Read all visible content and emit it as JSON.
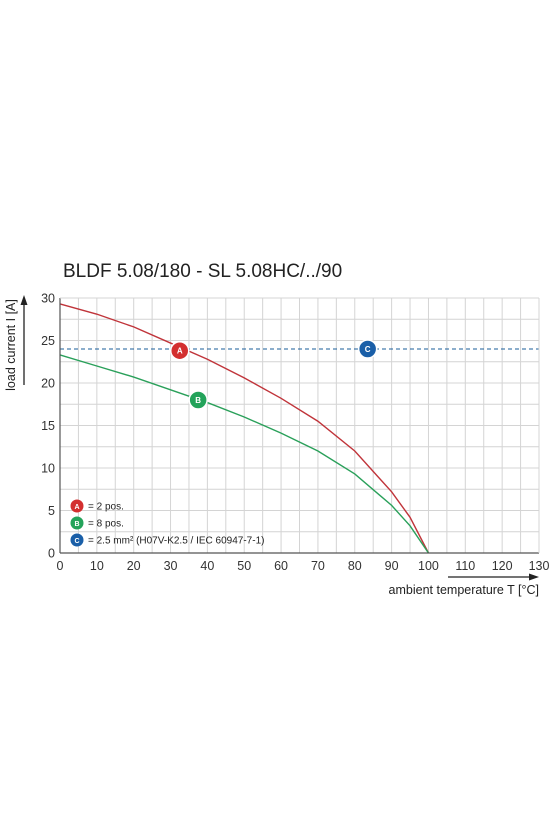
{
  "chart_data": {
    "type": "line",
    "title": "BLDF 5.08/180 - SL 5.08HC/../90",
    "xlabel": "ambient temperature T [°C]",
    "ylabel": "load current I [A]",
    "xlim": [
      0,
      130
    ],
    "ylim": [
      0,
      30
    ],
    "xticks": [
      0,
      10,
      20,
      30,
      40,
      50,
      60,
      70,
      80,
      90,
      100,
      110,
      120,
      130
    ],
    "yticks": [
      0,
      5,
      10,
      15,
      20,
      25,
      30
    ],
    "grid": true,
    "series": [
      {
        "id": "A",
        "color": "#c0343a",
        "points": [
          [
            0,
            29.3
          ],
          [
            10,
            28.1
          ],
          [
            20,
            26.6
          ],
          [
            30,
            24.7
          ],
          [
            40,
            22.8
          ],
          [
            50,
            20.6
          ],
          [
            60,
            18.2
          ],
          [
            70,
            15.5
          ],
          [
            80,
            12.0
          ],
          [
            90,
            7.2
          ],
          [
            95,
            4.2
          ],
          [
            100,
            0
          ]
        ]
      },
      {
        "id": "B",
        "color": "#2aa05a",
        "points": [
          [
            0,
            23.3
          ],
          [
            10,
            22.0
          ],
          [
            20,
            20.7
          ],
          [
            30,
            19.2
          ],
          [
            40,
            17.7
          ],
          [
            50,
            16.0
          ],
          [
            60,
            14.1
          ],
          [
            70,
            12.0
          ],
          [
            80,
            9.3
          ],
          [
            90,
            5.6
          ],
          [
            95,
            3.2
          ],
          [
            100,
            0
          ]
        ]
      },
      {
        "id": "C",
        "color": "#1a5d9a",
        "dashed": true,
        "points": [
          [
            0,
            24
          ],
          [
            130,
            24
          ]
        ]
      }
    ],
    "markers": [
      {
        "letter": "A",
        "x": 32.5,
        "y": 23.8,
        "color": "#d32f2f"
      },
      {
        "letter": "B",
        "x": 37.5,
        "y": 18.0,
        "color": "#23a35a"
      },
      {
        "letter": "C",
        "x": 83.5,
        "y": 24.0,
        "color": "#1a5fa8"
      }
    ],
    "legend": {
      "position": "bottom-left",
      "items": [
        {
          "letter": "A",
          "color": "#d32f2f",
          "text": "= 2 pos."
        },
        {
          "letter": "B",
          "color": "#23a35a",
          "text": "= 8 pos."
        },
        {
          "letter": "C",
          "color": "#1a5fa8",
          "text": "= 2.5 mm² (H07V-K2.5 / IEC 60947-7-1)"
        }
      ]
    }
  }
}
